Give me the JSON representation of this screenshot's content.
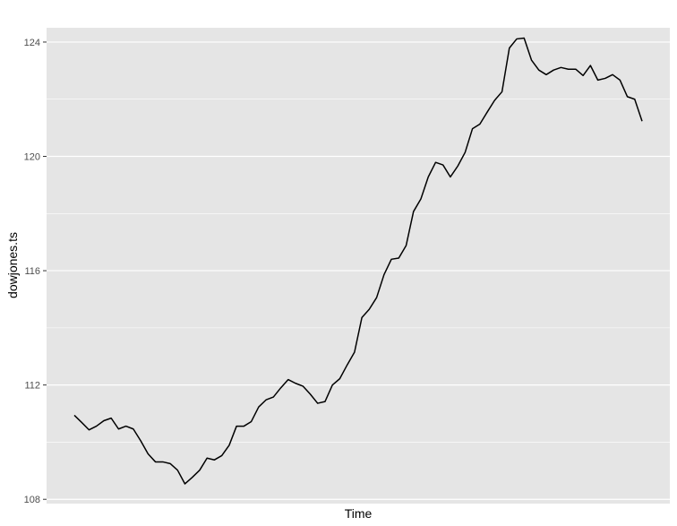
{
  "chart_data": {
    "type": "line",
    "title": "",
    "xlabel": "Time",
    "ylabel": "dowjones.ts",
    "ylim": [
      107.85,
      124.5
    ],
    "yticks": [
      108,
      112,
      116,
      120,
      124
    ],
    "ytick_labels": [
      "108",
      "112",
      "116",
      "120",
      "124"
    ],
    "xticks_shown": false,
    "grid": true,
    "legend": "none",
    "colors": {
      "panel_background": "#e5e5e5",
      "grid": "#ffffff",
      "line": "#000000",
      "tick_text": "#4d4d4d"
    },
    "series": [
      {
        "values": [
          110.94,
          110.69,
          110.43,
          110.56,
          110.75,
          110.84,
          110.46,
          110.56,
          110.46,
          110.05,
          109.59,
          109.31,
          109.31,
          109.25,
          109.02,
          108.54,
          108.77,
          109.02,
          109.44,
          109.38,
          109.53,
          109.89,
          110.56,
          110.56,
          110.72,
          111.23,
          111.48,
          111.58,
          111.9,
          112.19,
          112.06,
          111.96,
          111.68,
          111.36,
          111.42,
          112.0,
          112.22,
          112.7,
          113.15,
          114.36,
          114.65,
          115.06,
          115.86,
          116.4,
          116.44,
          116.88,
          118.07,
          118.51,
          119.28,
          119.79,
          119.7,
          119.28,
          119.66,
          120.14,
          120.97,
          121.13,
          121.55,
          121.96,
          122.26,
          123.79,
          124.11,
          124.14,
          123.37,
          123.02,
          122.86,
          123.02,
          123.11,
          123.05,
          123.05,
          122.83,
          123.18,
          122.67,
          122.73,
          122.86,
          122.67,
          122.09,
          122.0,
          121.23
        ]
      }
    ]
  }
}
